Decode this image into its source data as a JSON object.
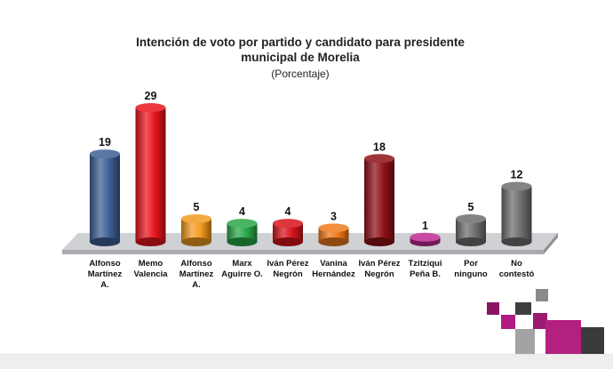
{
  "chart_data": {
    "type": "bar",
    "title_lines": [
      "Intención de voto por partido y candidato para presidente",
      "municipal de Morelia"
    ],
    "subtitle": "(Porcentaje)",
    "categories": [
      [
        "Alfonso",
        "Martínez",
        "A."
      ],
      [
        "Memo",
        "Valencia"
      ],
      [
        "Alfonso",
        "Martínez",
        "A."
      ],
      [
        "Marx",
        "Aguirre O."
      ],
      [
        "Iván Pérez",
        "Negrón"
      ],
      [
        "Vanina",
        "Hernández"
      ],
      [
        "Iván Pérez",
        "Negrón"
      ],
      [
        "Tzitziqui",
        "Peña B."
      ],
      [
        "Por",
        "ninguno"
      ],
      [
        "No",
        "contestó"
      ]
    ],
    "values": [
      19,
      29,
      5,
      4,
      4,
      3,
      18,
      1,
      5,
      12
    ],
    "value_labels": [
      "19",
      "29",
      "5",
      "4",
      "4",
      "3",
      "18",
      "1",
      "5",
      "12"
    ],
    "ylim": [
      0,
      29
    ],
    "grid": false,
    "legend": "none"
  },
  "colors": {
    "bars": [
      "#3d5f96",
      "#e8141c",
      "#f29b1f",
      "#2aa84a",
      "#d7141c",
      "#f07a1a",
      "#8e1118",
      "#c02a92",
      "#6e6e6e",
      "#6e6e6e"
    ],
    "floor": "#cfd1d4",
    "decor_magenta": "#8a1563",
    "decor_dark": "#4a4a4a",
    "decor_gray": "#9a9a9a"
  }
}
